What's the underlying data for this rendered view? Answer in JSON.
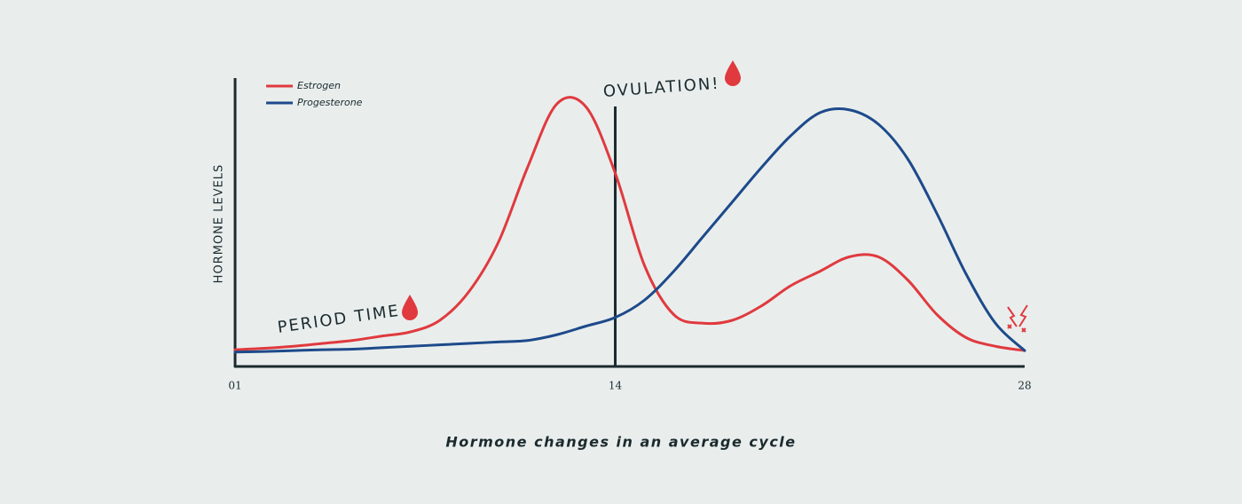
{
  "chart_data": {
    "type": "line",
    "title": "Hormone changes in an average cycle",
    "y_label": "HORMONE LEVELS",
    "annotations": [
      "OVULATION!",
      "PERIOD TIME"
    ],
    "x": [
      1,
      2,
      3,
      4,
      5,
      6,
      7,
      8,
      9,
      10,
      11,
      12,
      13,
      14,
      15,
      16,
      17,
      18,
      19,
      20,
      21,
      22,
      23,
      24,
      25,
      26,
      27,
      28
    ],
    "xlim": [
      1,
      28
    ],
    "xticks": [
      {
        "value": 1,
        "label": "01"
      },
      14,
      28
    ],
    "ylim": [
      0,
      100
    ],
    "legend": "top-left",
    "series": [
      {
        "name": "Estrogen",
        "color": "#e03a3e",
        "values": [
          5.8,
          6.3,
          7,
          8,
          9,
          10.5,
          12,
          16,
          26,
          43,
          69,
          91,
          90,
          67,
          35,
          18,
          15,
          16,
          21,
          28,
          33,
          38,
          38,
          30,
          18,
          10,
          7,
          5.5
        ]
      },
      {
        "name": "Progesterone",
        "color": "#1d4a8a",
        "values": [
          5,
          5.2,
          5.5,
          5.8,
          6,
          6.5,
          7,
          7.5,
          8,
          8.5,
          9,
          11,
          14,
          17,
          23,
          33,
          45,
          57,
          69,
          80,
          88,
          89,
          84,
          72,
          53,
          32,
          15,
          5.5
        ]
      }
    ]
  }
}
